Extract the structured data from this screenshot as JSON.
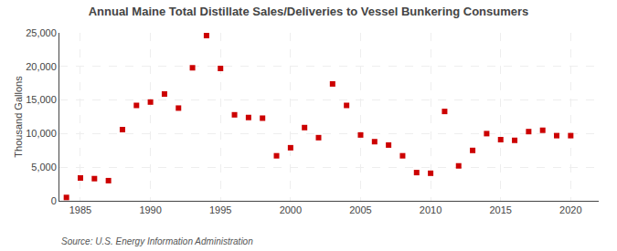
{
  "chart_data": {
    "type": "scatter",
    "title": "Annual Maine Total Distillate Sales/Deliveries to Vessel Bunkering Consumers",
    "ylabel": "Thousand Gallons",
    "annotations": [
      "Source: U.S. Energy Information Administration"
    ],
    "x": [
      1984,
      1985,
      1986,
      1987,
      1988,
      1989,
      1990,
      1991,
      1992,
      1993,
      1994,
      1995,
      1996,
      1997,
      1998,
      1999,
      2000,
      2001,
      2002,
      2003,
      2004,
      2005,
      2006,
      2007,
      2008,
      2009,
      2010,
      2011,
      2012,
      2013,
      2014,
      2015,
      2016,
      2017,
      2018,
      2019,
      2020
    ],
    "values": [
      500,
      3400,
      3300,
      3000,
      10600,
      14200,
      14700,
      15900,
      13800,
      19800,
      24600,
      19700,
      12800,
      12400,
      12300,
      6700,
      7900,
      10900,
      9400,
      17400,
      14200,
      9800,
      8800,
      8300,
      6700,
      4200,
      4100,
      13300,
      5200,
      7500,
      10000,
      9100,
      9000,
      10300,
      10500,
      9700,
      9700
    ],
    "color": "#cc0000",
    "marker": "square",
    "xlim": [
      1983.5,
      2022
    ],
    "xticks": [
      1985,
      1990,
      1995,
      2000,
      2005,
      2010,
      2015,
      2020
    ],
    "ylim": [
      0,
      25000
    ],
    "yticks": [
      0,
      {
        "value": 5000,
        "label": "5,000"
      },
      {
        "value": 10000,
        "label": "10,000"
      },
      {
        "value": 15000,
        "label": "15,000"
      },
      {
        "value": 20000,
        "label": "20,000"
      },
      {
        "value": 25000,
        "label": "25,000"
      }
    ],
    "grid": true
  }
}
